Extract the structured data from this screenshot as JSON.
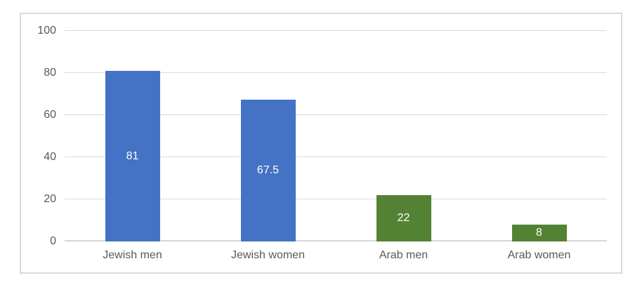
{
  "chart_data": {
    "type": "bar",
    "title": "",
    "categories": [
      "Jewish men",
      "Jewish women",
      "Arab men",
      "Arab women"
    ],
    "values": [
      81,
      67.5,
      22,
      8
    ],
    "data_labels": [
      "81",
      "67.5",
      "22",
      "8"
    ],
    "data_label_position": "center",
    "data_label_color": "#ffffff",
    "bar_colors": [
      "#4472C4",
      "#4472C4",
      "#548235",
      "#548235"
    ],
    "xlabel": "",
    "ylabel": "",
    "ylim": [
      0,
      100
    ],
    "yticks": [
      0,
      20,
      40,
      60,
      80,
      100
    ],
    "grid": true,
    "legend": false
  },
  "colors": {
    "blue_series": "#4472C4",
    "green_series": "#548235",
    "gridline": "#d9d9d9",
    "axis_line": "#d6d6d6",
    "axis_text": "#595959",
    "chart_border": "#d9d9d9",
    "background": "#ffffff"
  }
}
